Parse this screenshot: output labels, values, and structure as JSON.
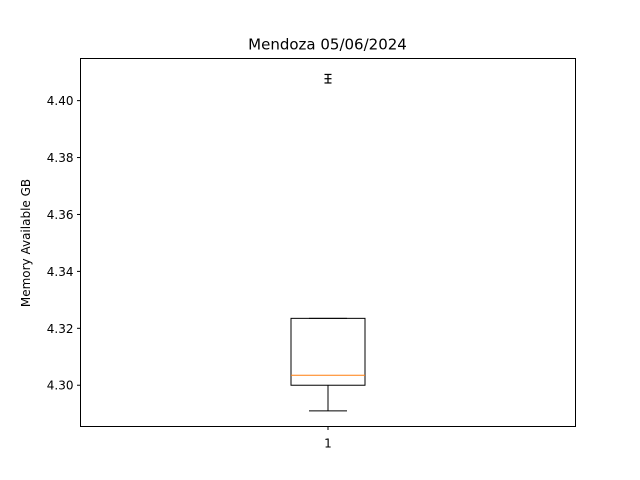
{
  "chart_data": {
    "type": "box",
    "title": "Mendoza 05/06/2024",
    "xlabel": "",
    "ylabel": "Memory Available GB",
    "categories": [
      "1"
    ],
    "boxes": [
      {
        "label": "1",
        "whisker_low": 4.291,
        "q1": 4.3,
        "median": 4.3035,
        "q3": 4.3235,
        "whisker_high": 4.3235,
        "outliers": [
          4.4062,
          4.4077,
          4.4092
        ]
      }
    ],
    "ylim": [
      4.2855,
      4.4148
    ],
    "yticks": [
      "4.30",
      "4.32",
      "4.34",
      "4.36",
      "4.38",
      "4.40"
    ],
    "grid": false,
    "colors": {
      "box": "#000000",
      "median": "#ff7f0e"
    }
  }
}
